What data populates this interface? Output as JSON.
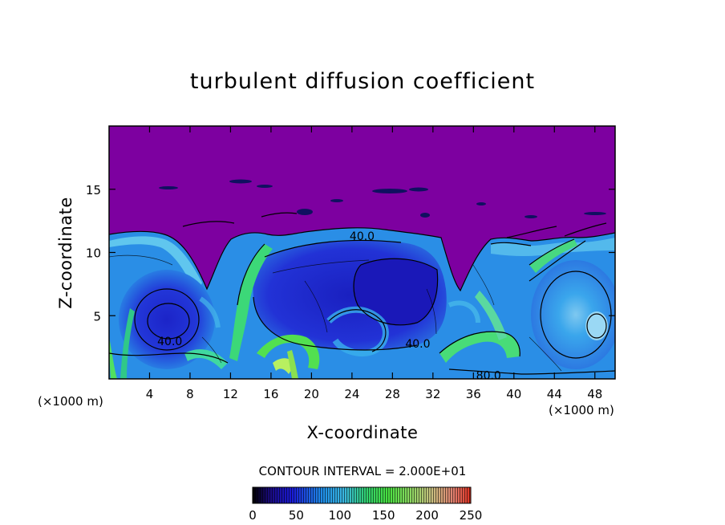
{
  "chart_data": {
    "type": "heatmap",
    "title": "turbulent diffusion coefficient",
    "xlabel": "X-coordinate",
    "ylabel": "Z-coordinate",
    "x_unit": "(×1000 m)",
    "z_unit": "(×1000 m)",
    "xlim": [
      0,
      50
    ],
    "ylim": [
      0,
      20
    ],
    "x_ticks": [
      4,
      8,
      12,
      16,
      20,
      24,
      28,
      32,
      36,
      40,
      44,
      48
    ],
    "y_ticks": [
      5,
      10,
      15
    ],
    "contour_interval_text": "CONTOUR INTERVAL = 2.000E+01",
    "contour_labels": [
      {
        "text": "40.0",
        "x": 25,
        "z": 11.3
      },
      {
        "text": "40.0",
        "x": 6,
        "z": 3.0
      },
      {
        "text": "40.0",
        "x": 30.5,
        "z": 2.8
      },
      {
        "text": "80.0",
        "x": 37.5,
        "z": 0.3
      }
    ],
    "colorbar": {
      "min": 0,
      "max": 250,
      "ticks": [
        0,
        50,
        100,
        150,
        200,
        250
      ]
    },
    "colors": {
      "background_above": "#7d00a0",
      "low": "#1a1acf",
      "mid": "#28a0e6",
      "high": "#40e040"
    }
  }
}
